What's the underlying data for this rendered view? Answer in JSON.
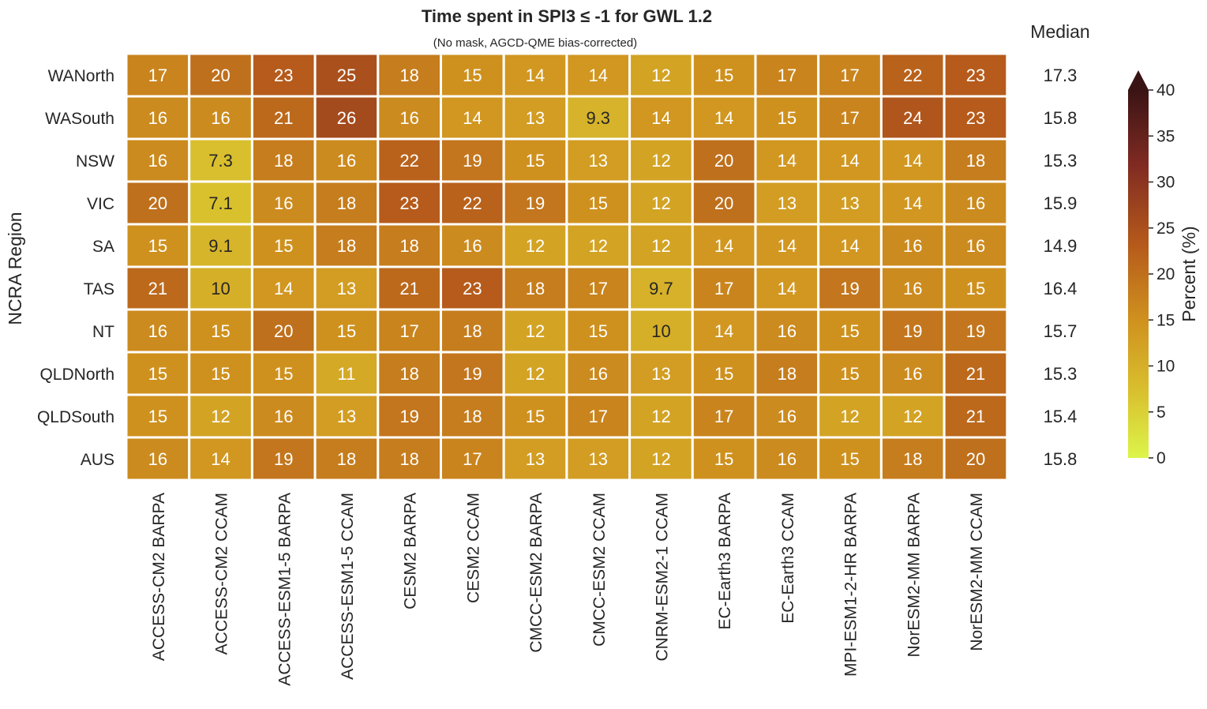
{
  "chart_data": {
    "type": "heatmap",
    "title": "Time spent in SPI3 ≤ -1 for GWL 1.2",
    "subtitle": "(No mask, AGCD-QME bias-corrected)",
    "ylabel": "NCRA Region",
    "xlabel": "",
    "rows": [
      "WANorth",
      "WASouth",
      "NSW",
      "VIC",
      "SA",
      "TAS",
      "NT",
      "QLDNorth",
      "QLDSouth",
      "AUS"
    ],
    "columns": [
      "ACCESS-CM2 BARPA",
      "ACCESS-CM2 CCAM",
      "ACCESS-ESM1-5 BARPA",
      "ACCESS-ESM1-5 CCAM",
      "CESM2 BARPA",
      "CESM2 CCAM",
      "CMCC-ESM2 BARPA",
      "CMCC-ESM2 CCAM",
      "CNRM-ESM2-1 CCAM",
      "EC-Earth3 BARPA",
      "EC-Earth3 CCAM",
      "MPI-ESM1-2-HR BARPA",
      "NorESM2-MM BARPA",
      "NorESM2-MM CCAM"
    ],
    "values": [
      [
        "17",
        "20",
        "23",
        "25",
        "18",
        "15",
        "14",
        "14",
        "12",
        "15",
        "17",
        "17",
        "22",
        "23"
      ],
      [
        "16",
        "16",
        "21",
        "26",
        "16",
        "14",
        "13",
        "9.3",
        "14",
        "14",
        "15",
        "17",
        "24",
        "23"
      ],
      [
        "16",
        "7.3",
        "18",
        "16",
        "22",
        "19",
        "15",
        "13",
        "12",
        "20",
        "14",
        "14",
        "14",
        "18"
      ],
      [
        "20",
        "7.1",
        "16",
        "18",
        "23",
        "22",
        "19",
        "15",
        "12",
        "20",
        "13",
        "13",
        "14",
        "16"
      ],
      [
        "15",
        "9.1",
        "15",
        "18",
        "18",
        "16",
        "12",
        "12",
        "12",
        "14",
        "14",
        "14",
        "16",
        "16"
      ],
      [
        "21",
        "10",
        "14",
        "13",
        "21",
        "23",
        "18",
        "17",
        "9.7",
        "17",
        "14",
        "19",
        "16",
        "15"
      ],
      [
        "16",
        "15",
        "20",
        "15",
        "17",
        "18",
        "12",
        "15",
        "10",
        "14",
        "16",
        "15",
        "19",
        "19"
      ],
      [
        "15",
        "15",
        "15",
        "11",
        "18",
        "19",
        "12",
        "16",
        "13",
        "15",
        "18",
        "15",
        "16",
        "21"
      ],
      [
        "15",
        "12",
        "16",
        "13",
        "19",
        "18",
        "15",
        "17",
        "12",
        "17",
        "16",
        "12",
        "12",
        "21"
      ],
      [
        "16",
        "14",
        "19",
        "18",
        "18",
        "17",
        "13",
        "13",
        "12",
        "15",
        "16",
        "15",
        "18",
        "20"
      ]
    ],
    "median_header": "Median",
    "median": [
      "17.3",
      "15.8",
      "15.3",
      "15.9",
      "14.9",
      "16.4",
      "15.7",
      "15.3",
      "15.4",
      "15.8"
    ],
    "colorbar": {
      "label": "Percent (%)",
      "range": [
        0,
        40
      ],
      "ticks": [
        "0",
        "5",
        "10",
        "15",
        "20",
        "25",
        "30",
        "35",
        "40"
      ],
      "extend": "max",
      "colors": [
        "#dcf54a",
        "#d7b02a",
        "#c77a1b",
        "#a8471b",
        "#7a2424",
        "#3a1414"
      ]
    }
  }
}
